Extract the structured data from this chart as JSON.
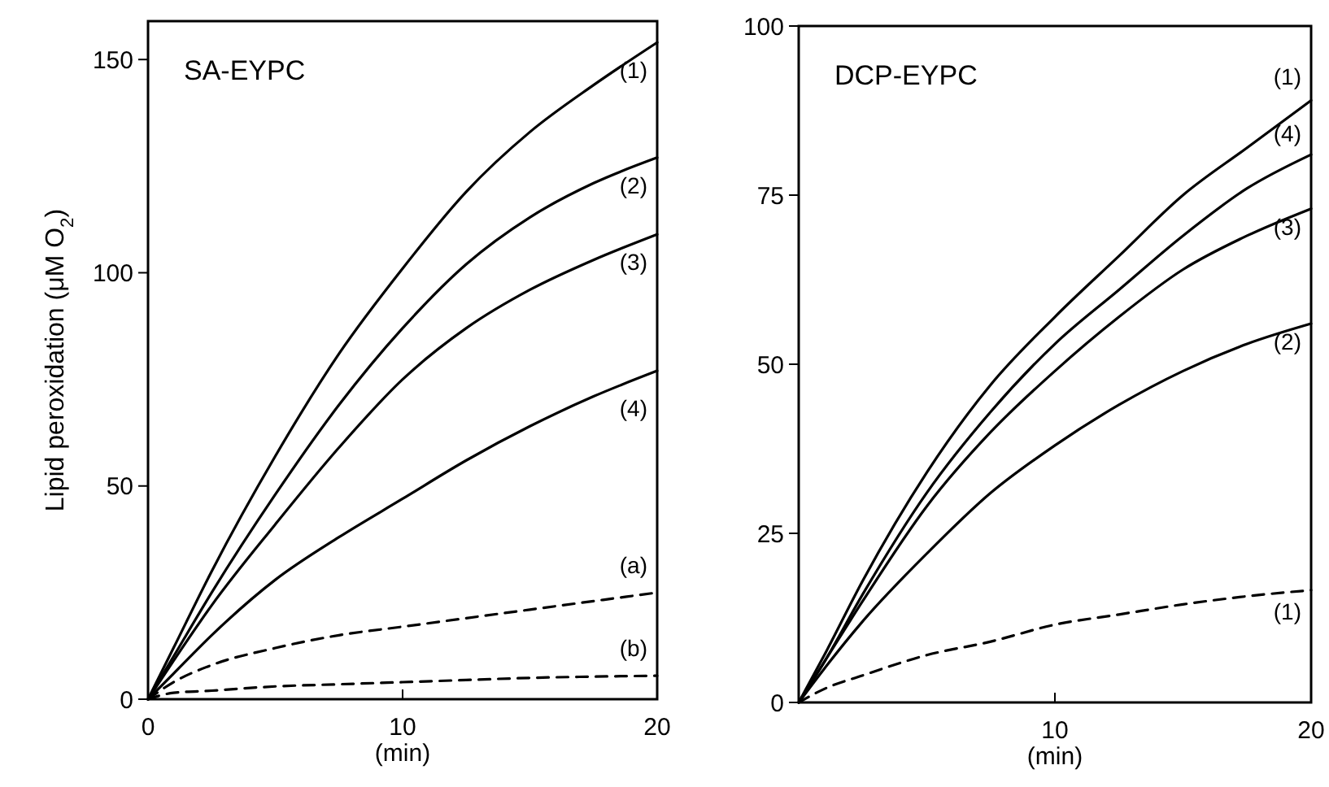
{
  "chart_data": [
    {
      "type": "line",
      "title": "SA-EYPC",
      "xlabel": "(min)",
      "ylabel": "Lipid peroxidation (μM O$_{2}$)",
      "xlim": [
        0,
        20
      ],
      "ylim": [
        0,
        159
      ],
      "xticks": [
        0,
        10,
        20
      ],
      "yticks": [
        0,
        50,
        100,
        150
      ],
      "grid": false,
      "marker": "none",
      "x": [
        0,
        1,
        2.5,
        5,
        7.5,
        10,
        12.5,
        15,
        17.5,
        20
      ],
      "series": [
        {
          "name": "(1)",
          "color": "#000000",
          "line_style": "solid",
          "values": [
            0,
            12,
            30,
            57,
            81,
            101,
            119,
            133,
            144,
            154
          ]
        },
        {
          "name": "(2)",
          "color": "#000000",
          "line_style": "solid",
          "values": [
            0,
            10,
            25,
            48,
            69,
            87,
            102,
            113,
            121,
            127
          ]
        },
        {
          "name": "(3)",
          "color": "#000000",
          "line_style": "solid",
          "values": [
            0,
            9,
            22,
            41,
            59,
            75,
            87,
            96,
            103,
            109
          ]
        },
        {
          "name": "(4)",
          "color": "#000000",
          "line_style": "solid",
          "values": [
            0,
            6,
            15,
            28,
            38,
            47,
            56,
            64,
            71,
            77
          ]
        },
        {
          "name": "(a)",
          "color": "#000000",
          "line_style": "dashed",
          "values": [
            0,
            4,
            8,
            12,
            15,
            17,
            19,
            21,
            23,
            25
          ]
        },
        {
          "name": "(b)",
          "color": "#000000",
          "line_style": "dashed",
          "values": [
            0,
            1.5,
            2,
            3,
            3.5,
            4,
            4.5,
            5,
            5.3,
            5.5
          ]
        }
      ]
    },
    {
      "type": "line",
      "title": "DCP-EYPC",
      "xlabel": "(min)",
      "xlim": [
        0,
        20
      ],
      "ylim": [
        0,
        100
      ],
      "xticks": [
        10,
        20
      ],
      "yticks": [
        0,
        25,
        50,
        75,
        100
      ],
      "grid": false,
      "marker": "none",
      "x": [
        0,
        1,
        2.5,
        5,
        7.5,
        10,
        12.5,
        15,
        17.5,
        20
      ],
      "series": [
        {
          "name": "(1)",
          "color": "#000000",
          "line_style": "solid",
          "values": [
            0,
            7,
            18,
            34,
            47,
            57,
            66,
            75,
            82,
            89
          ]
        },
        {
          "name": "(4)",
          "color": "#000000",
          "line_style": "solid",
          "values": [
            0,
            6,
            16,
            31,
            43,
            53,
            61,
            69,
            76,
            81
          ]
        },
        {
          "name": "(3)",
          "color": "#000000",
          "line_style": "solid",
          "values": [
            0,
            6,
            15,
            29,
            40,
            49,
            57,
            64,
            69,
            73
          ]
        },
        {
          "name": "(2)",
          "color": "#000000",
          "line_style": "solid",
          "values": [
            0,
            5,
            12,
            22,
            31,
            38,
            44,
            49,
            53,
            56
          ]
        },
        {
          "name": "(1)",
          "color": "#000000",
          "line_style": "dashed",
          "values": [
            0,
            2,
            4,
            7,
            9,
            11.5,
            13,
            14.5,
            15.7,
            16.6
          ]
        }
      ]
    }
  ]
}
